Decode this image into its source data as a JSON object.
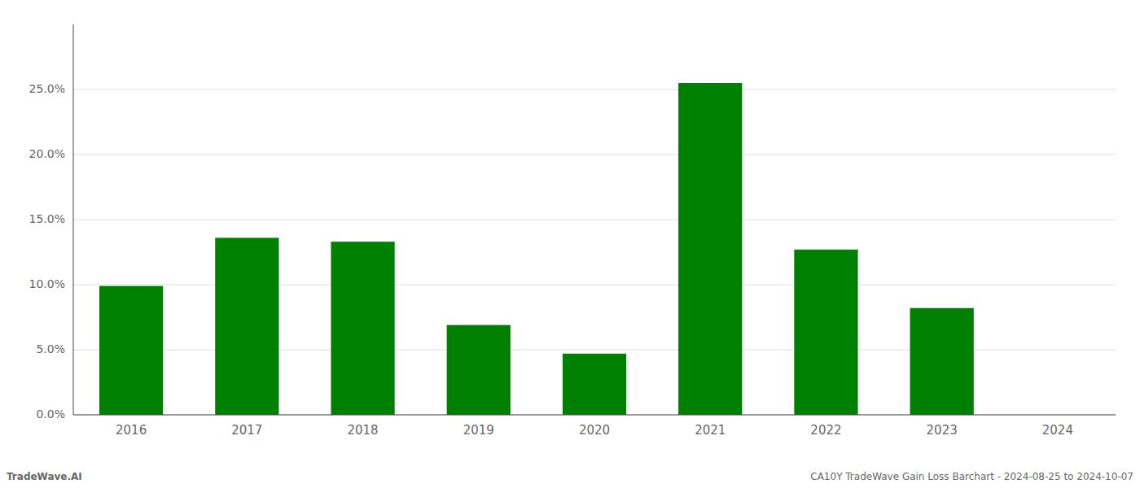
{
  "chart_data": {
    "type": "bar",
    "categories": [
      "2016",
      "2017",
      "2018",
      "2019",
      "2020",
      "2021",
      "2022",
      "2023",
      "2024"
    ],
    "values": [
      0.099,
      0.136,
      0.133,
      0.069,
      0.047,
      0.255,
      0.127,
      0.082,
      0.0
    ],
    "color": "#008000",
    "ylim": [
      0,
      0.3
    ],
    "yticks": [
      {
        "value": 0.0,
        "label": "0.0%"
      },
      {
        "value": 0.05,
        "label": "5.0%"
      },
      {
        "value": 0.1,
        "label": "10.0%"
      },
      {
        "value": 0.15,
        "label": "15.0%"
      },
      {
        "value": 0.2,
        "label": "20.0%"
      },
      {
        "value": 0.25,
        "label": "25.0%"
      }
    ],
    "grid": true,
    "annotations": [
      "TradeWave.AI",
      "CA10Y TradeWave Gain Loss Barchart - 2024-08-25 to 2024-10-07"
    ]
  }
}
